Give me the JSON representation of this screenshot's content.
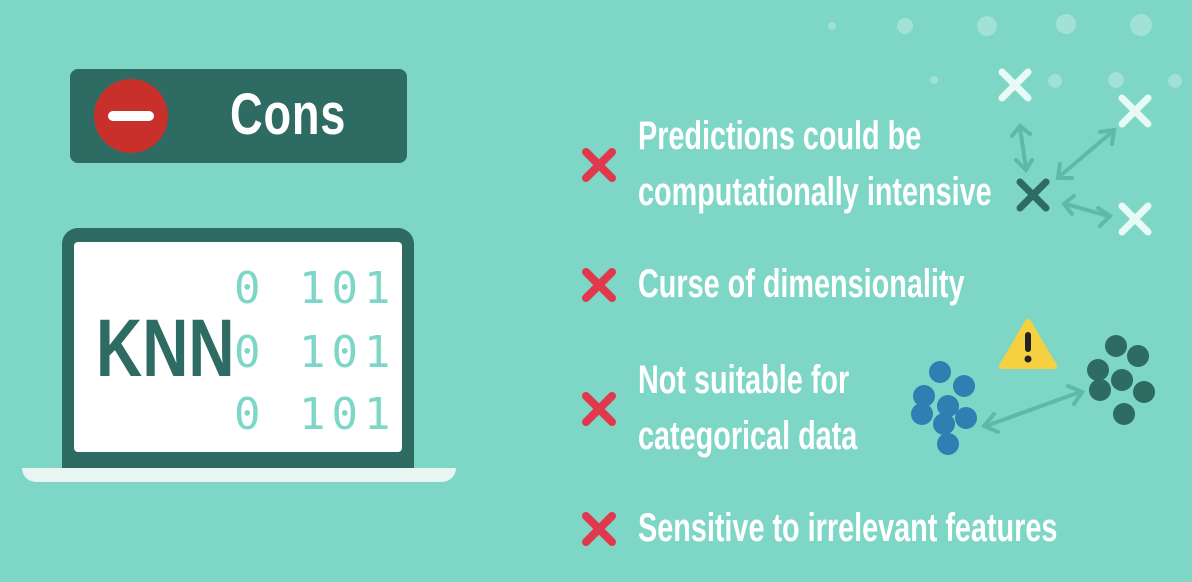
{
  "header": {
    "title": "Cons"
  },
  "laptop": {
    "label": "KNN",
    "binary_lines": [
      "0 101",
      "0 101",
      "0 101"
    ]
  },
  "cons": [
    {
      "line1": "Predictions could be",
      "line2": "computationally intensive"
    },
    {
      "line1": "Curse of dimensionality",
      "line2": ""
    },
    {
      "line1": "Not suitable for",
      "line2": "categorical data"
    },
    {
      "line1": "Sensitive to irrelevant features",
      "line2": ""
    }
  ],
  "colors": {
    "background": "#7dd6c6",
    "dark_teal": "#2e6b62",
    "red_x": "#e0394d",
    "minus_red": "#c9302c",
    "warning_yellow": "#f5d142",
    "blue_cluster": "#2f7fb3",
    "dark_cluster": "#2e6b62"
  },
  "icons": {
    "minus": "minus-circle-icon",
    "cross": "cross-icon",
    "warning": "warning-triangle-icon"
  }
}
